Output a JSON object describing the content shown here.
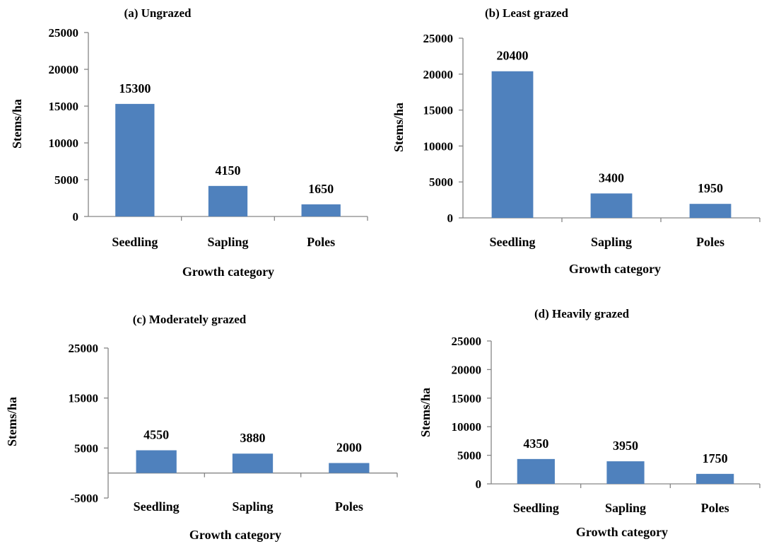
{
  "colors": {
    "bar": "#4f81bd",
    "axis": "#868686",
    "text": "#000000"
  },
  "chart_data": [
    {
      "type": "bar",
      "title": "(a) Ungrazed",
      "categories": [
        "Seedling",
        "Sapling",
        "Poles"
      ],
      "values": [
        15300,
        4150,
        1650
      ],
      "data_labels": [
        "15300",
        "4150",
        "1650"
      ],
      "xlabel": "Growth category",
      "ylabel": "Stems/ha",
      "ylim": [
        0,
        25000
      ],
      "yticks": [
        "0",
        "5000",
        "10000",
        "15000",
        "20000",
        "25000"
      ],
      "grid": false,
      "legend": "none"
    },
    {
      "type": "bar",
      "title": "(b) Least grazed",
      "categories": [
        "Seedling",
        "Sapling",
        "Poles"
      ],
      "values": [
        20400,
        3400,
        1950
      ],
      "data_labels": [
        "20400",
        "3400",
        "1950"
      ],
      "xlabel": "Growth category",
      "ylabel": "Stems/ha",
      "ylim": [
        0,
        25000
      ],
      "yticks": [
        "0",
        "5000",
        "10000",
        "15000",
        "20000",
        "25000"
      ],
      "grid": false,
      "legend": "none"
    },
    {
      "type": "bar",
      "title": "(c) Moderately grazed",
      "categories": [
        "Seedling",
        "Sapling",
        "Poles"
      ],
      "values": [
        4550,
        3880,
        2000
      ],
      "data_labels": [
        "4550",
        "3880",
        "2000"
      ],
      "xlabel": "Growth category",
      "ylabel": "Stems/ha",
      "ylim": [
        -5000,
        25000
      ],
      "yticks": [
        "-5000",
        "5000",
        "15000",
        "25000"
      ],
      "grid": false,
      "legend": "none"
    },
    {
      "type": "bar",
      "title": "(d) Heavily grazed",
      "categories": [
        "Seedling",
        "Sapling",
        "Poles"
      ],
      "values": [
        4350,
        3950,
        1750
      ],
      "data_labels": [
        "4350",
        "3950",
        "1750"
      ],
      "xlabel": "Growth category",
      "ylabel": "Stems/ha",
      "ylim": [
        0,
        25000
      ],
      "yticks": [
        "0",
        "5000",
        "10000",
        "15000",
        "20000",
        "25000"
      ],
      "grid": false,
      "legend": "none"
    }
  ]
}
